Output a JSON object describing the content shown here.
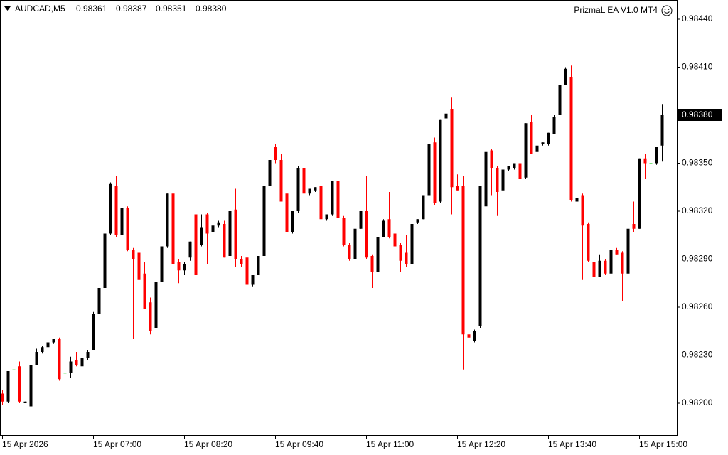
{
  "chart_data": {
    "type": "candlestick",
    "header": {
      "symbol": "AUDCAD,M5",
      "ohlc": [
        {
          "value": 0.98361,
          "label": "0.98361"
        },
        {
          "value": 0.98387,
          "label": "0.98387"
        },
        {
          "value": 0.98351,
          "label": "0.98351"
        },
        {
          "value": 0.9838,
          "label": "0.98380"
        }
      ]
    },
    "expert": "PrizmaL EA V1.0 MT4",
    "categories": [
      "15 Apr 2026",
      null,
      null,
      null,
      null,
      null,
      null,
      null,
      null,
      null,
      null,
      null,
      null,
      null,
      null,
      null,
      "15 Apr 07:00",
      null,
      null,
      null,
      null,
      null,
      null,
      null,
      null,
      null,
      null,
      null,
      null,
      null,
      null,
      null,
      "15 Apr 08:20",
      null,
      null,
      null,
      null,
      null,
      null,
      null,
      null,
      null,
      null,
      null,
      null,
      null,
      null,
      null,
      "15 Apr 09:40",
      null,
      null,
      null,
      null,
      null,
      null,
      null,
      null,
      null,
      null,
      null,
      null,
      null,
      null,
      null,
      "15 Apr 11:00",
      null,
      null,
      null,
      null,
      null,
      null,
      null,
      null,
      null,
      null,
      null,
      null,
      null,
      null,
      null,
      "15 Apr 12:20",
      null,
      null,
      null,
      null,
      null,
      null,
      null,
      null,
      null,
      null,
      null,
      null,
      null,
      null,
      null,
      "15 Apr 13:40",
      null,
      null,
      null,
      null,
      null,
      null,
      null,
      null,
      null,
      null,
      null,
      null,
      null,
      null,
      null,
      "15 Apr 15:00",
      null,
      null,
      null,
      null
    ],
    "open": [
      0.98206,
      0.98201,
      0.98221,
      0.98223,
      0.982,
      0.98198,
      0.98224,
      0.98232,
      0.98235,
      0.98238,
      0.9824,
      0.98219,
      0.98219,
      0.98227,
      0.98223,
      0.98228,
      0.98233,
      0.98256,
      0.98272,
      0.98306,
      0.98336,
      0.98305,
      0.98322,
      0.98296,
      0.98294,
      0.98281,
      0.98263,
      0.98247,
      0.98276,
      0.98298,
      0.98331,
      0.98288,
      0.98283,
      0.98291,
      0.98318,
      0.98299,
      0.98318,
      0.98307,
      0.98311,
      0.98312,
      0.98292,
      0.98321,
      0.9829,
      0.98291,
      0.98274,
      0.9828,
      0.98292,
      0.98336,
      0.9836,
      0.98352,
      0.98331,
      0.98307,
      0.9832,
      0.98347,
      0.98331,
      0.98333,
      0.98336,
      0.98315,
      0.98318,
      0.98339,
      0.98316,
      0.98299,
      0.9829,
      0.98309,
      0.9832,
      0.98292,
      0.98282,
      0.98304,
      0.98315,
      0.98306,
      0.98299,
      0.98294,
      0.98287,
      0.98313,
      0.98315,
      0.9833,
      0.98363,
      0.98326,
      0.98378,
      0.98384,
      0.98336,
      0.98336,
      0.98243,
      0.98239,
      0.98248,
      0.98323,
      0.98358,
      0.98347,
      0.98333,
      0.98346,
      0.98347,
      0.9835,
      0.98341,
      0.98376,
      0.98357,
      0.98362,
      0.98362,
      0.98368,
      0.9838,
      0.98399,
      0.98404,
      0.98326,
      0.9833,
      0.98312,
      0.98288,
      0.98279,
      0.98289,
      0.98281,
      0.98296,
      0.98294,
      0.98281,
      0.98312,
      0.98309,
      0.98353,
      0.9835,
      0.9835,
      0.98361
    ],
    "high": [
      0.98208,
      0.9822,
      0.98235,
      0.98226,
      0.98201,
      0.98224,
      0.98234,
      0.98236,
      0.98238,
      0.9824,
      0.98241,
      0.98227,
      0.98229,
      0.98232,
      0.9823,
      0.98233,
      0.98257,
      0.98272,
      0.98306,
      0.98338,
      0.98342,
      0.98323,
      0.98323,
      0.98297,
      0.98297,
      0.98288,
      0.98266,
      0.98276,
      0.98298,
      0.98331,
      0.98334,
      0.9829,
      0.98288,
      0.98301,
      0.9832,
      0.98318,
      0.98319,
      0.98312,
      0.98314,
      0.98314,
      0.98321,
      0.98334,
      0.98292,
      0.98293,
      0.9828,
      0.98292,
      0.98336,
      0.98352,
      0.98362,
      0.98356,
      0.98333,
      0.9832,
      0.98348,
      0.98356,
      0.98334,
      0.98335,
      0.98346,
      0.98318,
      0.98339,
      0.9834,
      0.98317,
      0.983,
      0.9831,
      0.9832,
      0.98342,
      0.98293,
      0.98304,
      0.98315,
      0.98332,
      0.98307,
      0.983,
      0.98305,
      0.98312,
      0.98315,
      0.9833,
      0.98363,
      0.98366,
      0.98377,
      0.98381,
      0.98391,
      0.98343,
      0.98342,
      0.98248,
      0.98246,
      0.98336,
      0.98358,
      0.98359,
      0.98348,
      0.98347,
      0.98348,
      0.9835,
      0.98352,
      0.98375,
      0.9838,
      0.98362,
      0.98363,
      0.98369,
      0.9838,
      0.98399,
      0.9841,
      0.98411,
      0.9833,
      0.98331,
      0.98313,
      0.9829,
      0.98293,
      0.9829,
      0.98296,
      0.98297,
      0.98295,
      0.98309,
      0.98326,
      0.98353,
      0.98356,
      0.9836,
      0.9836,
      0.98387
    ],
    "low": [
      0.98199,
      0.982,
      0.98218,
      0.982,
      0.982,
      0.98198,
      0.98224,
      0.98231,
      0.98234,
      0.98237,
      0.98214,
      0.98213,
      0.98216,
      0.98223,
      0.98222,
      0.98227,
      0.98233,
      0.98256,
      0.98271,
      0.98305,
      0.98304,
      0.98305,
      0.98295,
      0.9824,
      0.98276,
      0.98259,
      0.98243,
      0.98246,
      0.98276,
      0.98297,
      0.98286,
      0.98275,
      0.9828,
      0.98289,
      0.98277,
      0.98298,
      0.98287,
      0.98305,
      0.9831,
      0.98291,
      0.98291,
      0.98285,
      0.98285,
      0.98258,
      0.98273,
      0.9828,
      0.98292,
      0.98336,
      0.9835,
      0.98326,
      0.98287,
      0.98306,
      0.98319,
      0.9833,
      0.9833,
      0.98332,
      0.98315,
      0.98314,
      0.98317,
      0.98316,
      0.98298,
      0.98289,
      0.98289,
      0.98309,
      0.9829,
      0.98272,
      0.98282,
      0.98304,
      0.98303,
      0.98281,
      0.98282,
      0.98285,
      0.98287,
      0.98312,
      0.98315,
      0.98329,
      0.98324,
      0.98325,
      0.98377,
      0.98318,
      0.98333,
      0.98221,
      0.98236,
      0.98238,
      0.98247,
      0.98322,
      0.9833,
      0.98317,
      0.98333,
      0.98345,
      0.98346,
      0.98338,
      0.9834,
      0.98356,
      0.98356,
      0.98361,
      0.98361,
      0.98368,
      0.98379,
      0.98399,
      0.98326,
      0.98325,
      0.98277,
      0.98288,
      0.98242,
      0.98279,
      0.9828,
      0.9828,
      0.98293,
      0.98264,
      0.98281,
      0.98307,
      0.98309,
      0.9834,
      0.98339,
      0.98349,
      0.98351
    ],
    "close": [
      0.98201,
      0.9822,
      0.98221,
      0.98201,
      0.98201,
      0.98224,
      0.98232,
      0.98235,
      0.98238,
      0.9824,
      0.98215,
      0.98219,
      0.98226,
      0.98224,
      0.98228,
      0.98232,
      0.98256,
      0.98272,
      0.98306,
      0.98337,
      0.98305,
      0.98322,
      0.98296,
      0.9829,
      0.98277,
      0.98259,
      0.98245,
      0.98276,
      0.98298,
      0.98331,
      0.98287,
      0.98283,
      0.98287,
      0.98301,
      0.9828,
      0.9831,
      0.98306,
      0.98311,
      0.98313,
      0.98291,
      0.9832,
      0.9829,
      0.98287,
      0.98274,
      0.9828,
      0.98292,
      0.98336,
      0.98352,
      0.98352,
      0.98326,
      0.98307,
      0.9832,
      0.98347,
      0.98331,
      0.98334,
      0.98335,
      0.98315,
      0.98318,
      0.98339,
      0.98316,
      0.98299,
      0.9829,
      0.98309,
      0.9832,
      0.98291,
      0.98282,
      0.98304,
      0.98314,
      0.98304,
      0.98298,
      0.98289,
      0.98287,
      0.98312,
      0.98315,
      0.9833,
      0.98362,
      0.98325,
      0.98377,
      0.98381,
      0.98335,
      0.98333,
      0.98243,
      0.98241,
      0.98245,
      0.98336,
      0.98357,
      0.98347,
      0.98332,
      0.98346,
      0.98348,
      0.9835,
      0.9834,
      0.98375,
      0.98356,
      0.98361,
      0.98363,
      0.98369,
      0.98379,
      0.98399,
      0.98409,
      0.98327,
      0.98328,
      0.98311,
      0.98289,
      0.98279,
      0.98289,
      0.98281,
      0.98296,
      0.98293,
      0.98281,
      0.98309,
      0.98309,
      0.98353,
      0.9835,
      0.9835,
      0.9836,
      0.9838
    ],
    "ylim": [
      0.9818,
      0.98452
    ],
    "yticks": [
      {
        "value": 0.9844,
        "label": "0.98440"
      },
      {
        "value": 0.9841,
        "label": "0.98410"
      },
      {
        "value": 0.9838,
        "label": "0.98380"
      },
      {
        "value": 0.9835,
        "label": "0.98350"
      },
      {
        "value": 0.9832,
        "label": "0.98320"
      },
      {
        "value": 0.9829,
        "label": "0.98290"
      },
      {
        "value": 0.9826,
        "label": "0.98260"
      },
      {
        "value": 0.9823,
        "label": "0.98230"
      },
      {
        "value": 0.982,
        "label": "0.98200"
      }
    ],
    "current_price": {
      "value": 0.9838,
      "label": "0.98380"
    },
    "bull_color": "#000000",
    "bear_color": "#ff0000",
    "doji_color": "#00c800"
  }
}
